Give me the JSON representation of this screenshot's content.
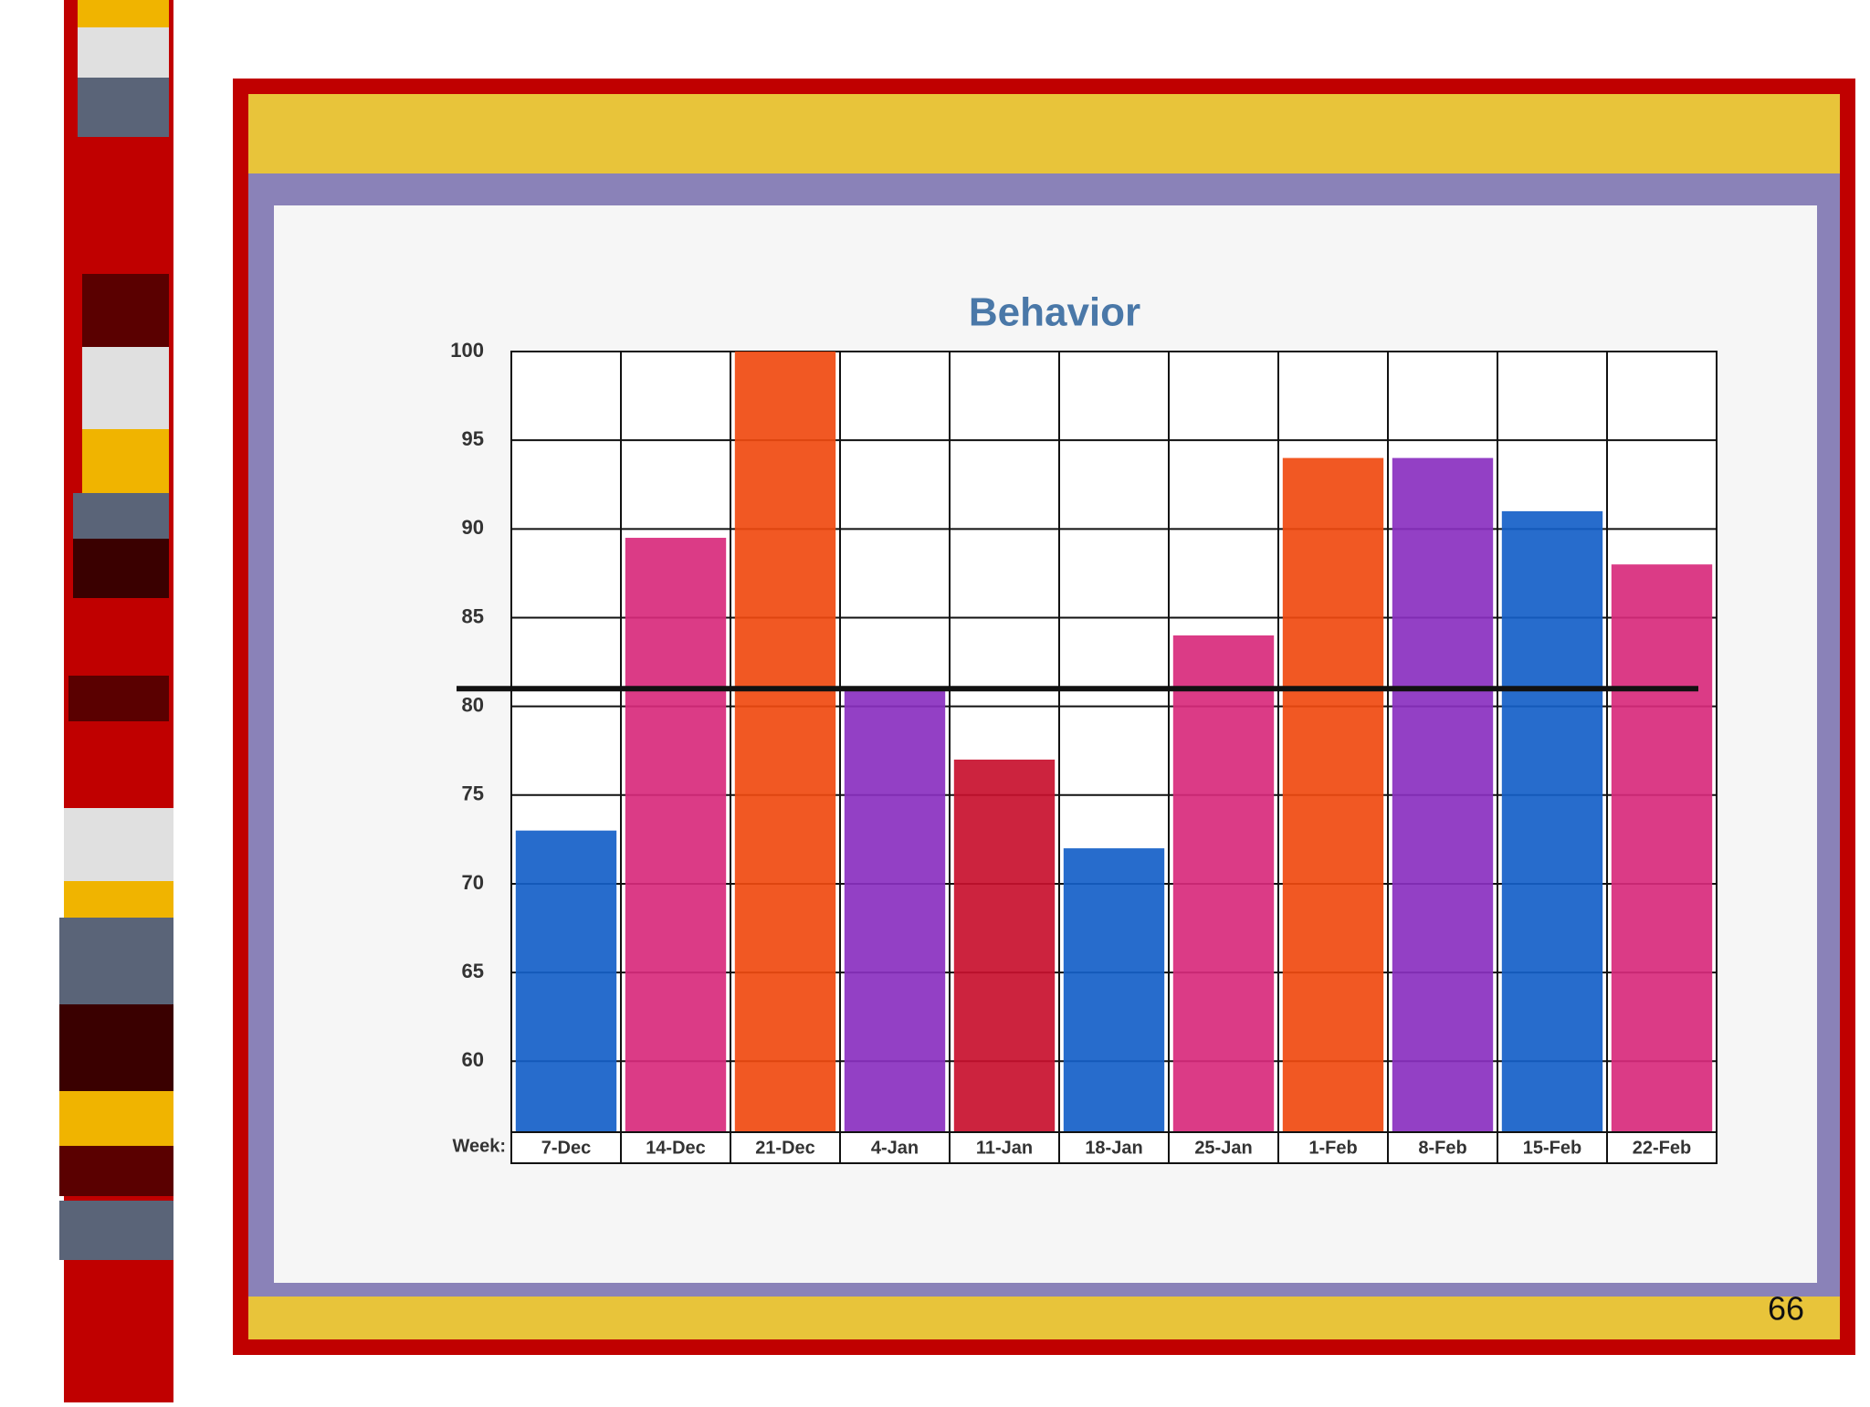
{
  "slide_number": "66",
  "chart_data": {
    "type": "bar",
    "title": "Behavior",
    "x_label": "Week:",
    "categories": [
      "7-Dec",
      "14-Dec",
      "21-Dec",
      "4-Jan",
      "11-Jan",
      "18-Jan",
      "25-Jan",
      "1-Feb",
      "8-Feb",
      "15-Feb",
      "22-Feb"
    ],
    "values": [
      73,
      89.5,
      100,
      81,
      77,
      72,
      84,
      94,
      94,
      91,
      88
    ],
    "colors": [
      "#1560c8",
      "#d82a7c",
      "#f04a10",
      "#8a30c0",
      "#c8102e",
      "#1560c8",
      "#d82a7c",
      "#f04a10",
      "#8a30c0",
      "#1560c8",
      "#d82a7c"
    ],
    "ylim": [
      56,
      100
    ],
    "yticks": [
      60,
      65,
      70,
      75,
      80,
      85,
      90,
      95,
      100
    ],
    "reference_line": 81,
    "grid": true
  }
}
